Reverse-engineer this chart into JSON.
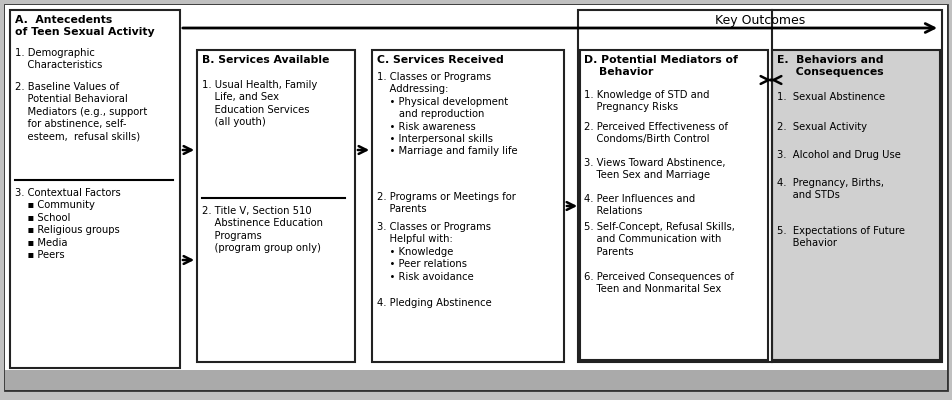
{
  "outer_bg": "#c0c0c0",
  "box_A": {
    "label": "A.  Antecedents\nof Teen Sexual Activity",
    "item1": "1. Demographic\n    Characteristics",
    "item2": "2. Baseline Values of\n    Potential Behavioral\n    Mediators (e.g., support\n    for abstinence, self-\n    esteem,  refusal skills)",
    "item3": "3. Contextual Factors\n    ▪ Community\n    ▪ School\n    ▪ Religious groups\n    ▪ Media\n    ▪ Peers"
  },
  "box_B": {
    "label": "B. Services Available",
    "item1": "1. Usual Health, Family\n    Life, and Sex\n    Education Services\n    (all youth)",
    "item2": "2. Title V, Section 510\n    Abstinence Education\n    Programs\n    (program group only)"
  },
  "box_C": {
    "label": "C. Services Received",
    "item1": "1. Classes or Programs\n    Addressing:\n    • Physical development\n       and reproduction\n    • Risk awareness\n    • Interpersonal skills\n    • Marriage and family life",
    "item2": "2. Programs or Meetings for\n    Parents",
    "item3": "3. Classes or Programs\n    Helpful with:\n    • Knowledge\n    • Peer relations\n    • Risk avoidance",
    "item4": "4. Pledging Abstinence"
  },
  "box_D": {
    "label": "D. Potential Mediators of\n    Behavior",
    "items": [
      "1. Knowledge of STD and\n    Pregnancy Risks",
      "2. Perceived Effectiveness of\n    Condoms/Birth Control",
      "3. Views Toward Abstinence,\n    Teen Sex and Marriage",
      "4. Peer Influences and\n    Relations",
      "5. Self-Concept, Refusal Skills,\n    and Communication with\n    Parents",
      "6. Perceived Consequences of\n    Teen and Nonmarital Sex"
    ]
  },
  "box_E": {
    "label": "E.  Behaviors and\n     Consequences",
    "items": [
      "1.  Sexual Abstinence",
      "2.  Sexual Activity",
      "3.  Alcohol and Drug Use",
      "4.  Pregnancy, Births,\n     and STDs",
      "5.  Expectations of Future\n     Behavior"
    ]
  },
  "key_outcomes": "Key Outcomes"
}
